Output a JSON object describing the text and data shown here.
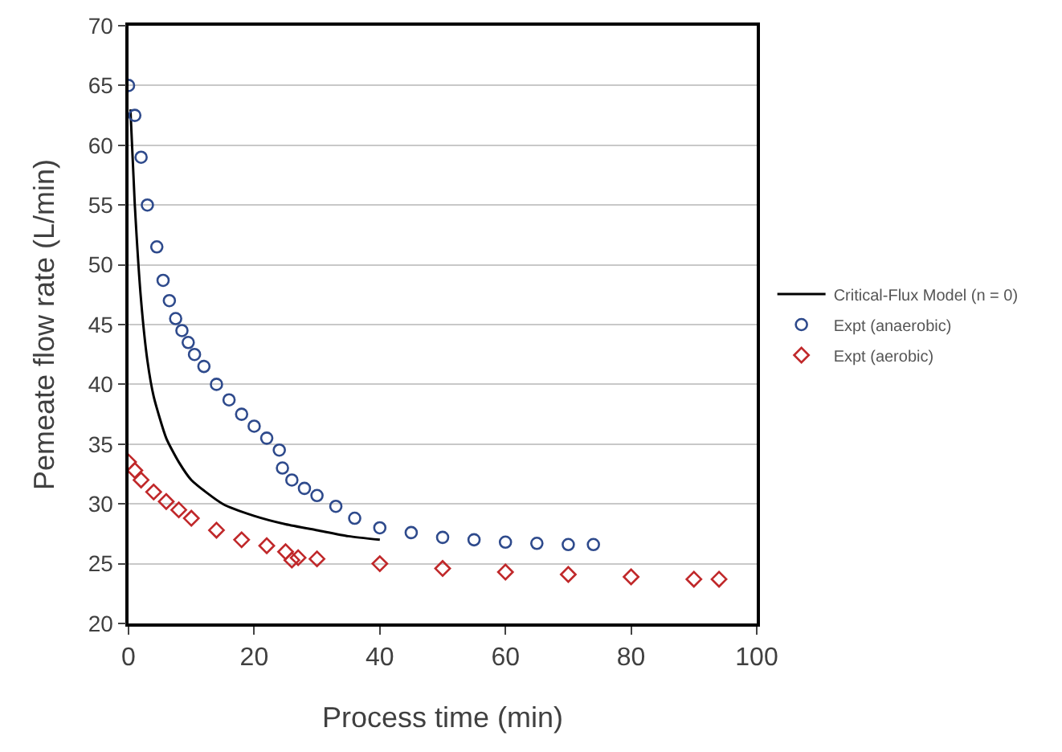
{
  "chart_data": {
    "type": "scatter",
    "xlabel": "Process time (min)",
    "ylabel": "Pemeate flow rate (L/min)",
    "xlim": [
      0,
      100
    ],
    "xticks": [
      0,
      20,
      40,
      60,
      80,
      100
    ],
    "ylim": [
      20,
      70
    ],
    "yticks": [
      20,
      25,
      30,
      35,
      40,
      45,
      50,
      55,
      60,
      65,
      70
    ],
    "grid": "y",
    "legend": "right",
    "series": [
      {
        "name": "Critical-Flux Model (n = 0)",
        "type": "line",
        "color": "#000000",
        "marker": "none",
        "line_style": "solid",
        "x": [
          0.3,
          1,
          2,
          3,
          4,
          6,
          8,
          10,
          15,
          20,
          25,
          30,
          35,
          40
        ],
        "values": [
          63,
          55,
          47,
          42,
          39,
          35.5,
          33.5,
          32,
          30,
          29,
          28.3,
          27.8,
          27.3,
          27
        ]
      },
      {
        "name": "Expt (anaerobic)",
        "color": "#2e4a8c",
        "marker": "circle",
        "x": [
          0,
          1,
          2,
          3,
          4.5,
          5.5,
          6.5,
          7.5,
          8.5,
          9.5,
          10.5,
          12,
          14,
          16,
          18,
          20,
          22,
          24,
          24.5,
          26,
          28,
          30,
          33,
          36,
          40,
          45,
          50,
          55,
          60,
          65,
          70,
          74
        ],
        "values": [
          65,
          62.5,
          59,
          55,
          51.5,
          48.7,
          47,
          45.5,
          44.5,
          43.5,
          42.5,
          41.5,
          40,
          38.7,
          37.5,
          36.5,
          35.5,
          34.5,
          33,
          32,
          31.3,
          30.7,
          29.8,
          28.8,
          28,
          27.6,
          27.2,
          27,
          26.8,
          26.7,
          26.6,
          26.6
        ]
      },
      {
        "name": "Expt (aerobic)",
        "color": "#c0282a",
        "marker": "diamond",
        "x": [
          0,
          1,
          2,
          4,
          6,
          8,
          10,
          14,
          18,
          22,
          25,
          26,
          27,
          30,
          40,
          50,
          60,
          70,
          80,
          90,
          94
        ],
        "values": [
          33.5,
          32.8,
          32,
          31,
          30.2,
          29.5,
          28.8,
          27.8,
          27,
          26.5,
          26,
          25.3,
          25.5,
          25.4,
          25,
          24.6,
          24.3,
          24.1,
          23.9,
          23.7,
          23.7
        ]
      }
    ]
  }
}
